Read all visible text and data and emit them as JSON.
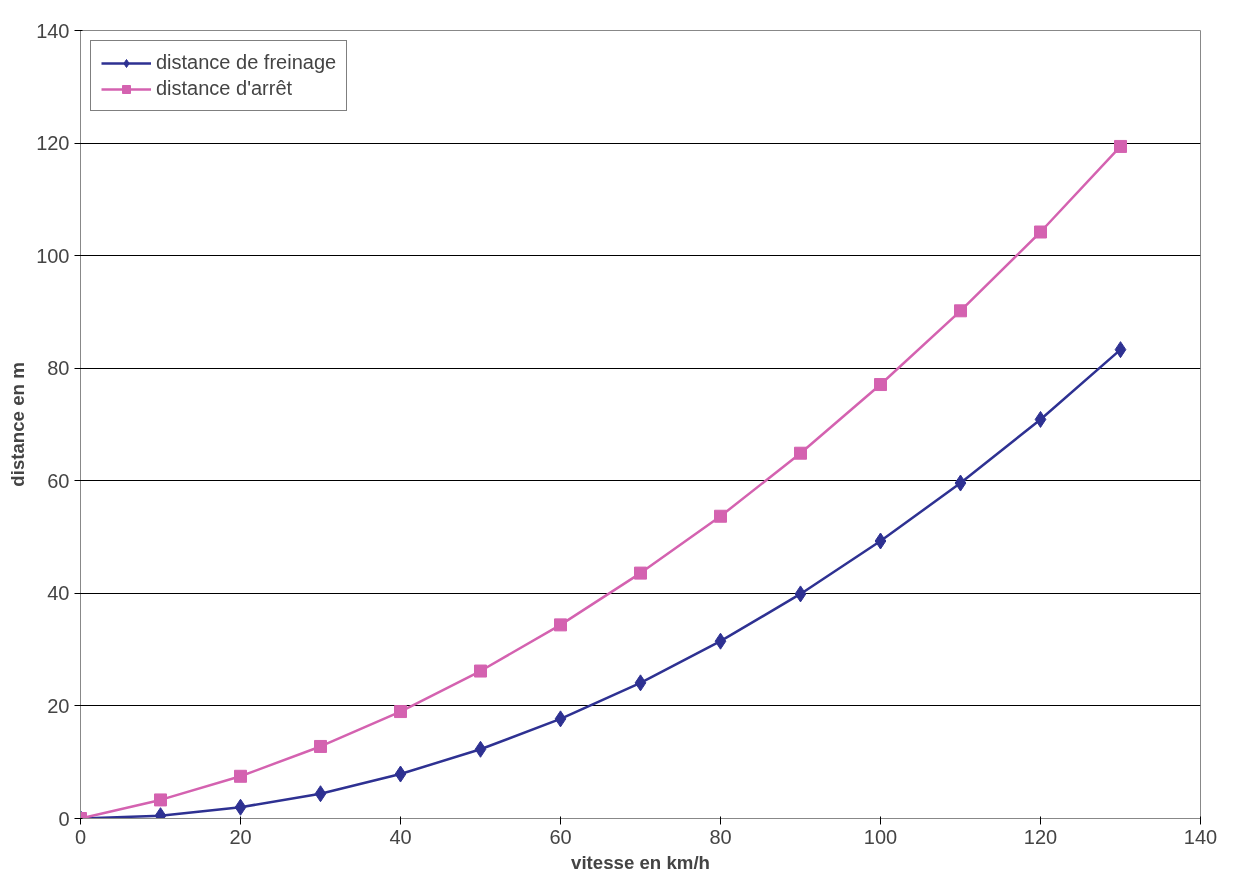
{
  "chart_data": {
    "type": "line",
    "xlabel": "vitesse en km/h",
    "ylabel": "distance en m",
    "x": [
      0,
      10,
      20,
      30,
      40,
      50,
      60,
      70,
      80,
      90,
      100,
      110,
      120,
      130
    ],
    "series": [
      {
        "name": "distance de freinage",
        "color": "#2e3192",
        "marker": "diamond",
        "values": [
          0,
          0.5,
          2.0,
          4.4,
          7.9,
          12.3,
          17.7,
          24.1,
          31.5,
          39.9,
          49.3,
          59.6,
          70.9,
          83.3
        ]
      },
      {
        "name": "distance d'arrêt",
        "color": "#d462b0",
        "marker": "square",
        "values": [
          0,
          3.3,
          7.5,
          12.8,
          19.0,
          26.2,
          34.4,
          43.6,
          53.7,
          64.9,
          77.1,
          90.2,
          104.2,
          119.4
        ]
      }
    ],
    "xlim": [
      0,
      140
    ],
    "ylim": [
      0,
      140
    ],
    "xticks": [
      0,
      20,
      40,
      60,
      80,
      100,
      120,
      140
    ],
    "yticks": [
      0,
      20,
      40,
      60,
      80,
      100,
      120,
      140
    ],
    "grid": "y",
    "legend": "top left",
    "line_style": "solid"
  }
}
